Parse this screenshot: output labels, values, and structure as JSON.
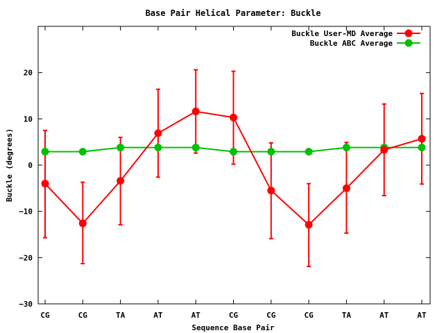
{
  "chart_data": {
    "type": "line",
    "title": "Base Pair Helical Parameter: Buckle",
    "xlabel": "Sequence Base Pair",
    "ylabel": "Buckle (degrees)",
    "categories": [
      "CG",
      "CG",
      "TA",
      "AT",
      "AT",
      "CG",
      "CG",
      "CG",
      "TA",
      "AT",
      "AT"
    ],
    "ylim": [
      -30,
      30
    ],
    "yticks": [
      "20",
      "10",
      "0",
      "−10",
      "−20",
      "−30"
    ],
    "ytick_values": [
      20,
      10,
      0,
      -10,
      -20,
      -30
    ],
    "grid": false,
    "legend_position": "top-right",
    "series": [
      {
        "name": "Buckle User-MD Average",
        "color": "#ff0000",
        "values": [
          -4.0,
          -12.6,
          -3.4,
          6.9,
          11.6,
          10.3,
          -5.5,
          -12.9,
          -5.0,
          3.3,
          5.7
        ],
        "err_low": [
          -15.7,
          -21.3,
          -12.9,
          -2.6,
          2.6,
          0.2,
          -15.9,
          -21.9,
          -14.7,
          -6.6,
          -4.1
        ],
        "err_high": [
          7.5,
          -3.7,
          6.0,
          16.4,
          20.6,
          20.3,
          4.8,
          -4.0,
          4.9,
          13.2,
          15.5
        ]
      },
      {
        "name": "Buckle ABC Average",
        "color": "#00c000",
        "values": [
          2.9,
          2.9,
          3.8,
          3.8,
          3.8,
          2.9,
          2.9,
          2.9,
          3.8,
          3.8,
          3.8
        ]
      }
    ]
  }
}
